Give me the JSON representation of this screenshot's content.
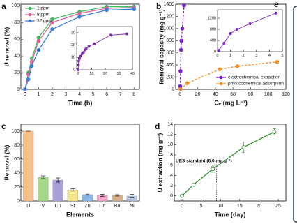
{
  "chart_data": [
    {
      "type": "line",
      "label": "a",
      "x_label": "Time (h)",
      "y_label": "U removal (%)",
      "x": [
        0,
        0.25,
        0.5,
        1,
        2,
        4,
        6,
        8
      ],
      "xlim": [
        -0.3,
        8.4
      ],
      "xticks": [
        0,
        1,
        2,
        3,
        4,
        5,
        6,
        7,
        8
      ],
      "ylim": [
        0,
        102
      ],
      "yticks": [
        0,
        20,
        40,
        60,
        80,
        100
      ],
      "legend": "upper left",
      "series": [
        {
          "name": "1 ppm",
          "color": "#3fbf5f",
          "values": [
            0,
            20,
            37,
            62,
            84,
            93,
            99,
            99
          ]
        },
        {
          "name": "8 ppm",
          "color": "#e0609c",
          "values": [
            0,
            18,
            33,
            58,
            80,
            91,
            97,
            98
          ]
        },
        {
          "name": "32 ppm",
          "color": "#3a7fd5",
          "values": [
            0,
            12,
            28,
            47,
            72,
            87,
            95,
            96
          ]
        }
      ],
      "inset": {
        "type": "line",
        "x": [
          0,
          0.25,
          0.5,
          1,
          2,
          3,
          4,
          5,
          6,
          8,
          12,
          24,
          36
        ],
        "xlim": [
          -1,
          40
        ],
        "xticks": [
          0,
          10,
          20,
          30,
          40
        ],
        "ylim": [
          0,
          35
        ],
        "yticks": [
          0,
          10,
          20,
          30
        ],
        "series": [
          {
            "color": "#7b2fa8",
            "values": [
              0,
              4,
              7,
              9,
              11,
              13,
              14,
              16,
              17,
              19,
              21,
              28,
              29
            ]
          }
        ]
      }
    },
    {
      "type": "scatter",
      "label": "b",
      "x_label": "Cₑ (mg L⁻¹)",
      "y_label": "Removal capacity (mg g⁻¹)",
      "xlim": [
        -5,
        120
      ],
      "xticks": [
        0,
        20,
        40,
        60,
        80,
        100,
        120
      ],
      "ylim": [
        0,
        1400
      ],
      "yticks": [
        0,
        200,
        400,
        600,
        800,
        1000,
        1200,
        1400
      ],
      "line_style": "dashed",
      "legend": "lower right",
      "series": [
        {
          "name": "electrochemical extraction",
          "color": "#7a22c8",
          "x": [
            0.1,
            0.5,
            1,
            1.5,
            2.5,
            4.5
          ],
          "values": [
            50,
            300,
            650,
            800,
            1000,
            1380
          ]
        },
        {
          "name": "physicochemical adsorption",
          "color": "#f08a24",
          "x": [
            0.5,
            8,
            45,
            65,
            110
          ],
          "values": [
            5,
            100,
            330,
            380,
            450
          ]
        }
      ],
      "inset": {
        "type": "scatter",
        "xlim": [
          0,
          5
        ],
        "xticks": [
          0,
          1,
          2,
          3,
          4,
          5
        ],
        "ylim": [
          0,
          1500
        ],
        "yticks": [
          0,
          400,
          800,
          1200
        ],
        "series": [
          {
            "color": "#7a22c8",
            "x": [
              0.1,
              0.5,
              1,
              1.5,
              2.5,
              4.5
            ],
            "values": [
              50,
              300,
              650,
              800,
              1000,
              1380
            ]
          }
        ]
      }
    },
    {
      "type": "bar",
      "label": "c",
      "x_label": "Elements",
      "y_label": "Removal (%)",
      "categories": [
        "U",
        "V",
        "Cu",
        "Sr",
        "Zn",
        "Co",
        "Ba",
        "Ni"
      ],
      "values": [
        100,
        34,
        30,
        16,
        9,
        8,
        8,
        7
      ],
      "errors": [
        0,
        2,
        3,
        1.5,
        0.8,
        1.5,
        1,
        2.5
      ],
      "colors": [
        "#f5c08a",
        "#a6d68a",
        "#a9a0d6",
        "#f3e58a",
        "#8ab6e6",
        "#f2a6c8",
        "#d6b08a",
        "#b9c6e0"
      ],
      "ylim": [
        0,
        110
      ],
      "yticks": [
        0,
        20,
        40,
        60,
        80,
        100
      ]
    },
    {
      "type": "line",
      "label": "d",
      "x_label": "Time (day)",
      "y_label": "U extraction (mg g⁻¹)",
      "x": [
        0,
        3,
        8,
        16,
        24
      ],
      "xlim": [
        -2,
        27
      ],
      "xticks": [
        0,
        5,
        10,
        15,
        20,
        25
      ],
      "ylim": [
        -1,
        14
      ],
      "yticks": [
        0,
        2,
        4,
        6,
        8,
        10,
        12,
        14
      ],
      "open_markers": true,
      "series": [
        {
          "color": "#2e8b2e",
          "values": [
            0,
            2.2,
            5.2,
            9.5,
            12.5
          ],
          "errors": [
            0,
            0.3,
            0.6,
            1,
            0.6
          ]
        }
      ],
      "reference": {
        "label": "UES standard (6.0 mg g⁻¹)",
        "x": 9,
        "y": 6
      }
    },
    {
      "type": "panel",
      "label": "e"
    }
  ]
}
